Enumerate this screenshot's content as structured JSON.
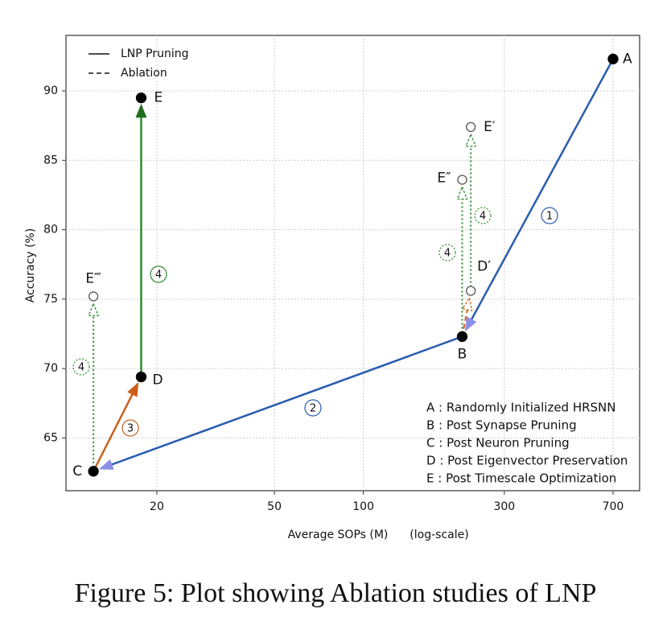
{
  "chart_data": {
    "type": "line",
    "log_x": true,
    "grid": true,
    "xlim": [
      9.85,
      861
    ],
    "ylim": [
      61.2,
      94
    ],
    "xticks": [
      20,
      50,
      100,
      300,
      700
    ],
    "yticks": [
      65,
      70,
      75,
      80,
      85,
      90
    ],
    "x_label": "Average SOPs (M)",
    "x_label_note": "(log-scale)",
    "y_label": "Accuracy (%)",
    "legend": [
      {
        "name": "LNP Pruning",
        "style": "solid"
      },
      {
        "name": "Ablation",
        "style": "dashed"
      }
    ],
    "points": [
      {
        "label": "A",
        "x": 700,
        "y": 92.3,
        "filled": true
      },
      {
        "label": "B",
        "x": 216,
        "y": 72.3,
        "filled": true
      },
      {
        "label": "C",
        "x": 12.2,
        "y": 62.6,
        "filled": true
      },
      {
        "label": "D",
        "x": 17.7,
        "y": 69.4,
        "filled": true
      },
      {
        "label": "E",
        "x": 17.7,
        "y": 89.5,
        "filled": true
      },
      {
        "label": "E′",
        "x": 231,
        "y": 87.4,
        "filled": false
      },
      {
        "label": "D′",
        "x": 231,
        "y": 75.6,
        "filled": false
      },
      {
        "label": "E″",
        "x": 216,
        "y": 83.6,
        "filled": false
      },
      {
        "label": "E‴",
        "x": 12.2,
        "y": 75.2,
        "filled": false
      }
    ],
    "arrows": [
      {
        "from": 0,
        "to": 1,
        "color": "#2a5db0",
        "head_color": "#8c8fe6",
        "style": "solid",
        "step": "1"
      },
      {
        "from": 1,
        "to": 2,
        "color": "#2a5db0",
        "head_color": "#8c8fe6",
        "style": "solid",
        "step": "2"
      },
      {
        "from": 2,
        "to": 3,
        "color": "#cc5f1a",
        "head_color": "#cc5f1a",
        "style": "solid",
        "step": "3"
      },
      {
        "from": 3,
        "to": 4,
        "color": "#2e8b2e",
        "head_color": "#1f6e1f",
        "style": "solid",
        "step": "4"
      },
      {
        "from": 1,
        "to": 6,
        "color": "#cc5f1a",
        "head_color": "#cc5f1a",
        "style": "dashed"
      },
      {
        "from": 6,
        "to": 5,
        "color": "#2e8b2e",
        "head_color": "#2e8b2e",
        "style": "dotted",
        "step": "4"
      },
      {
        "from": 1,
        "to": 7,
        "color": "#2e8b2e",
        "head_color": "#2e8b2e",
        "style": "dotted",
        "step": "4"
      },
      {
        "from": 2,
        "to": 8,
        "color": "#2e8b2e",
        "head_color": "#2e8b2e",
        "style": "dotted",
        "step": "4"
      }
    ],
    "key": [
      "A : Randomly Initialized HRSNN",
      "B : Post Synapse Pruning",
      "C : Post Neuron Pruning",
      "D : Post Eigenvector Preservation",
      "E : Post Timescale Optimization"
    ],
    "caption": "Figure 5: Plot showing Ablation studies of LNP"
  }
}
